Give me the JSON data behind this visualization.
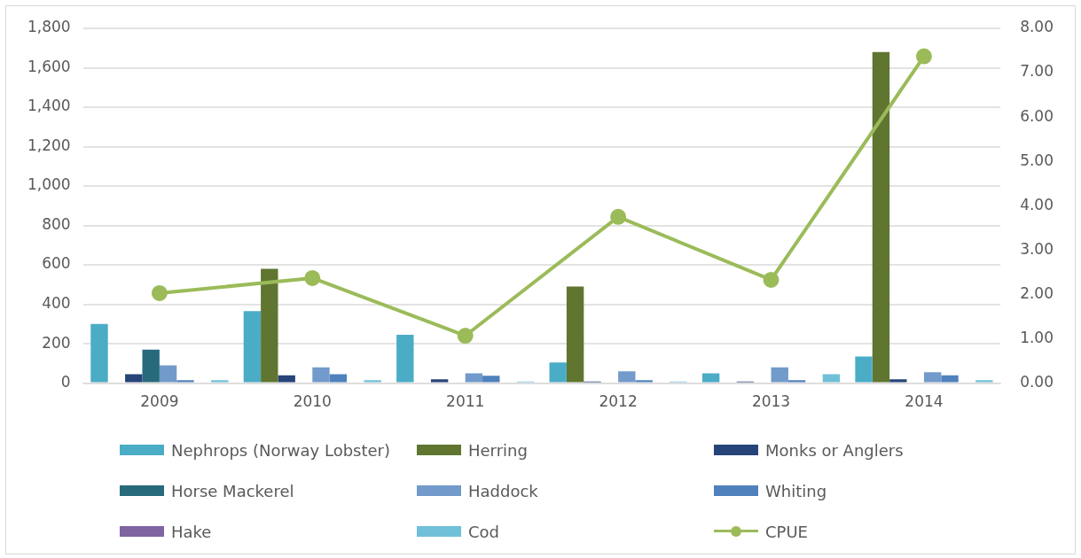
{
  "chart_data": {
    "type": "bar",
    "categories": [
      "2009",
      "2010",
      "2011",
      "2012",
      "2013",
      "2014"
    ],
    "series": [
      {
        "name": "Nephrops (Norway Lobster)",
        "color": "#4bacc6",
        "values": [
          300,
          365,
          245,
          105,
          50,
          135
        ]
      },
      {
        "name": "Herring",
        "color": "#5f7530",
        "values": [
          0,
          580,
          0,
          490,
          0,
          1680
        ]
      },
      {
        "name": "Monks or Anglers",
        "color": "#264478",
        "values": [
          45,
          40,
          20,
          8,
          8,
          20
        ]
      },
      {
        "name": "Horse Mackerel",
        "color": "#276a7c",
        "values": [
          170,
          0,
          0,
          0,
          0,
          0
        ]
      },
      {
        "name": "Haddock",
        "color": "#729aca",
        "values": [
          90,
          80,
          50,
          60,
          80,
          55
        ]
      },
      {
        "name": "Whiting",
        "color": "#4f81bd",
        "values": [
          15,
          45,
          38,
          15,
          15,
          40
        ]
      },
      {
        "name": "Hake",
        "color": "#8064a2",
        "values": [
          0,
          0,
          0,
          0,
          0,
          0
        ]
      },
      {
        "name": "Cod",
        "color": "#6fc0d8",
        "values": [
          15,
          15,
          8,
          8,
          45,
          15
        ]
      },
      {
        "name": "CPUE",
        "color": "#9bbb59",
        "type": "line",
        "axis": "y2",
        "marker": "circle",
        "values": [
          2.03,
          2.37,
          1.07,
          3.75,
          2.33,
          7.37
        ]
      }
    ],
    "ylim": [
      0,
      1800
    ],
    "yticks": [
      0,
      {
        "value": 200,
        "label": "200"
      },
      {
        "value": 400,
        "label": "400"
      },
      {
        "value": 600,
        "label": "600"
      },
      {
        "value": 800,
        "label": "800"
      },
      {
        "value": 1000,
        "label": "1,000"
      },
      {
        "value": 1200,
        "label": "1,200"
      },
      {
        "value": 1400,
        "label": "1,400"
      },
      {
        "value": 1600,
        "label": "1,600"
      },
      {
        "value": 1800,
        "label": "1,800"
      }
    ],
    "y2lim": [
      0,
      8
    ],
    "y2ticks": [
      {
        "value": 0,
        "label": "0.00"
      },
      {
        "value": 1,
        "label": "1.00"
      },
      {
        "value": 2,
        "label": "2.00"
      },
      {
        "value": 3,
        "label": "3.00"
      },
      {
        "value": 4,
        "label": "4.00"
      },
      {
        "value": 5,
        "label": "5.00"
      },
      {
        "value": 6,
        "label": "6.00"
      },
      {
        "value": 7,
        "label": "7.00"
      },
      {
        "value": 8,
        "label": "8.00"
      }
    ],
    "grid": "y",
    "legend": "bottom"
  }
}
